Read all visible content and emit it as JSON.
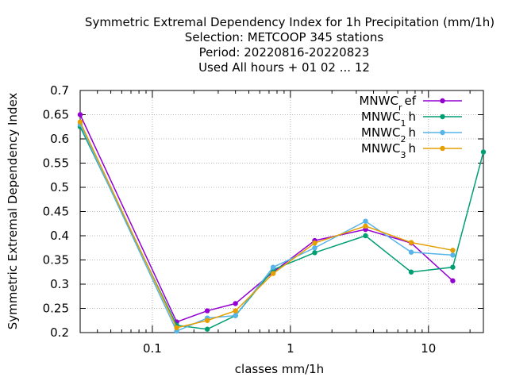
{
  "chart_data": {
    "type": "line",
    "title_lines": [
      "Symmetric Extremal Dependency Index  for 1h Precipitation (mm/1h)",
      "Selection: METCOOP    345 stations",
      "Period: 20220816-20220823",
      "Used  All hours + 01 02 ... 12"
    ],
    "xlabel": "classes mm/1h",
    "ylabel": "Symmetric Extremal Dependency Index",
    "xscale": "log",
    "xlim": [
      0.03,
      25
    ],
    "ylim": [
      0.2,
      0.7
    ],
    "x_ticks": [
      {
        "value": 0.1,
        "label": "0.1"
      },
      {
        "value": 1,
        "label": "1"
      },
      {
        "value": 10,
        "label": "10"
      }
    ],
    "y_ticks": [
      {
        "value": 0.2,
        "label": "0.2"
      },
      {
        "value": 0.25,
        "label": "0.25"
      },
      {
        "value": 0.3,
        "label": "0.3"
      },
      {
        "value": 0.35,
        "label": "0.35"
      },
      {
        "value": 0.4,
        "label": "0.4"
      },
      {
        "value": 0.45,
        "label": "0.45"
      },
      {
        "value": 0.5,
        "label": "0.5"
      },
      {
        "value": 0.55,
        "label": "0.55"
      },
      {
        "value": 0.6,
        "label": "0.6"
      },
      {
        "value": 0.65,
        "label": "0.65"
      },
      {
        "value": 0.7,
        "label": "0.7"
      }
    ],
    "grid": true,
    "legend_position": "top-right",
    "series": [
      {
        "name": "MNWC",
        "subscript": "r",
        "suffix": "ef",
        "color": "#9400d3",
        "x": [
          0.03,
          0.15,
          0.25,
          0.4,
          0.75,
          1.5,
          3.5,
          7.5,
          15
        ],
        "y": [
          0.65,
          0.222,
          0.245,
          0.26,
          0.325,
          0.39,
          0.413,
          0.385,
          0.307
        ]
      },
      {
        "name": "MNWC",
        "subscript": "1",
        "suffix": "h",
        "color": "#009e73",
        "x": [
          0.03,
          0.15,
          0.25,
          0.4,
          0.75,
          1.5,
          3.5,
          7.5,
          15,
          25
        ],
        "y": [
          0.625,
          0.215,
          0.207,
          0.235,
          0.33,
          0.365,
          0.4,
          0.325,
          0.335,
          0.573
        ]
      },
      {
        "name": "MNWC",
        "subscript": "2",
        "suffix": "h",
        "color": "#56b4e9",
        "x": [
          0.03,
          0.15,
          0.25,
          0.4,
          0.75,
          1.5,
          3.5,
          7.5,
          15
        ],
        "y": [
          0.63,
          0.203,
          0.23,
          0.235,
          0.335,
          0.375,
          0.43,
          0.366,
          0.36
        ]
      },
      {
        "name": "MNWC",
        "subscript": "3",
        "suffix": "h",
        "color": "#e69f00",
        "x": [
          0.03,
          0.15,
          0.25,
          0.4,
          0.75,
          1.5,
          3.5,
          7.5,
          15
        ],
        "y": [
          0.635,
          0.21,
          0.225,
          0.245,
          0.322,
          0.385,
          0.42,
          0.386,
          0.37
        ]
      }
    ]
  }
}
